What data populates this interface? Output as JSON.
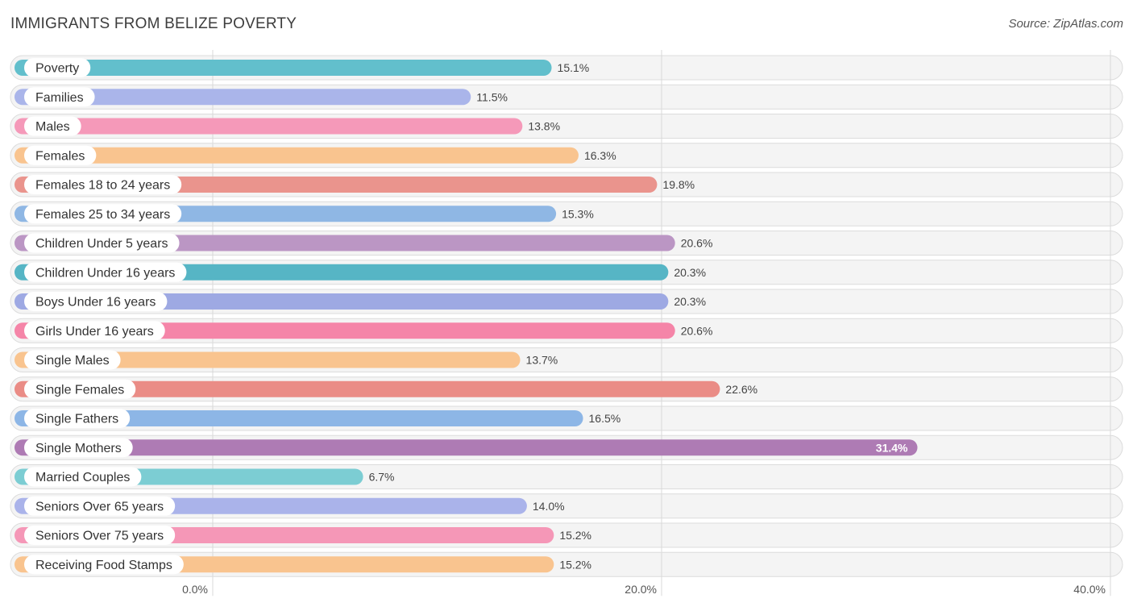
{
  "chart_data": {
    "type": "bar",
    "orientation": "horizontal",
    "title": "IMMIGRANTS FROM BELIZE POVERTY",
    "source": "Source: ZipAtlas.com",
    "categories": [
      "Poverty",
      "Families",
      "Males",
      "Females",
      "Females 18 to 24 years",
      "Females 25 to 34 years",
      "Children Under 5 years",
      "Children Under 16 years",
      "Boys Under 16 years",
      "Girls Under 16 years",
      "Single Males",
      "Single Females",
      "Single Fathers",
      "Single Mothers",
      "Married Couples",
      "Seniors Over 65 years",
      "Seniors Over 75 years",
      "Receiving Food Stamps"
    ],
    "values": [
      15.1,
      11.5,
      13.8,
      16.3,
      19.8,
      15.3,
      20.6,
      20.3,
      20.3,
      20.6,
      13.7,
      22.6,
      16.5,
      31.4,
      6.7,
      14.0,
      15.2,
      15.2
    ],
    "value_labels": [
      "15.1%",
      "11.5%",
      "13.8%",
      "16.3%",
      "19.8%",
      "15.3%",
      "20.6%",
      "20.3%",
      "20.3%",
      "20.6%",
      "13.7%",
      "22.6%",
      "16.5%",
      "31.4%",
      "6.7%",
      "14.0%",
      "15.2%",
      "15.2%"
    ],
    "colors": [
      "#62bfcc",
      "#aab5ea",
      "#f599b9",
      "#f9c48f",
      "#ea948d",
      "#8fb7e4",
      "#bb96c4",
      "#56b5c5",
      "#9ea9e3",
      "#f585a8",
      "#f9c48f",
      "#ea8c86",
      "#8db6e6",
      "#ae7bb4",
      "#7ccdd3",
      "#aab3ea",
      "#f597b7",
      "#f9c48f"
    ],
    "xlim": [
      0,
      40
    ],
    "x_ticks": [
      0,
      20,
      40
    ],
    "x_tick_labels": [
      "0.0%",
      "20.0%",
      "40.0%"
    ],
    "xlabel": "",
    "ylabel": ""
  }
}
